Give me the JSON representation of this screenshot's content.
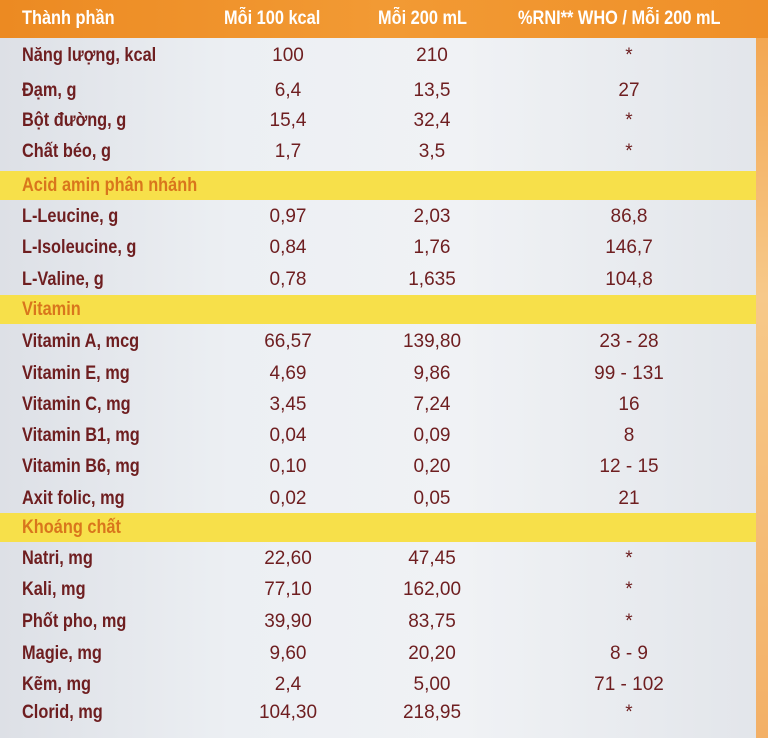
{
  "header": {
    "col_name": "Thành phần",
    "col_100kcal": "Mỗi 100 kcal",
    "col_200ml": "Mỗi 200 mL",
    "col_rni": "%RNI** WHO / Mỗi 200 mL"
  },
  "groups": [
    {
      "title": "",
      "rows": [
        [
          "Năng lượng, kcal",
          "100",
          "210",
          "*"
        ],
        [
          "Đạm, g",
          "6,4",
          "13,5",
          "27"
        ],
        [
          "Bột đường, g",
          "15,4",
          "32,4",
          "*"
        ],
        [
          "Chất béo, g",
          "1,7",
          "3,5",
          "*"
        ]
      ]
    },
    {
      "title": "Acid amin phân nhánh",
      "rows": [
        [
          "L-Leucine, g",
          "0,97",
          "2,03",
          "86,8"
        ],
        [
          "L-Isoleucine, g",
          "0,84",
          "1,76",
          "146,7"
        ],
        [
          "L-Valine, g",
          "0,78",
          "1,635",
          "104,8"
        ]
      ]
    },
    {
      "title": "Vitamin",
      "rows": [
        [
          "Vitamin A, mcg",
          "66,57",
          "139,80",
          "23 - 28"
        ],
        [
          "Vitamin E, mg",
          "4,69",
          "9,86",
          "99 - 131"
        ],
        [
          "Vitamin C, mg",
          "3,45",
          "7,24",
          "16"
        ],
        [
          "Vitamin B1, mg",
          "0,04",
          "0,09",
          "8"
        ],
        [
          "Vitamin B6, mg",
          "0,10",
          "0,20",
          "12 - 15"
        ],
        [
          "Axit folic, mg",
          "0,02",
          "0,05",
          "21"
        ]
      ]
    },
    {
      "title": "Khoáng chất",
      "rows": [
        [
          "Natri, mg",
          "22,60",
          "47,45",
          "*"
        ],
        [
          "Kali, mg",
          "77,10",
          "162,00",
          "*"
        ],
        [
          "Phốt pho, mg",
          "39,90",
          "83,75",
          "*"
        ],
        [
          "Magie, mg",
          "9,60",
          "20,20",
          "8 - 9"
        ],
        [
          "Kẽm, mg",
          "2,4",
          "5,00",
          "71 - 102"
        ],
        [
          "Clorid, mg",
          "104,30",
          "218,95",
          "*"
        ]
      ]
    }
  ]
}
